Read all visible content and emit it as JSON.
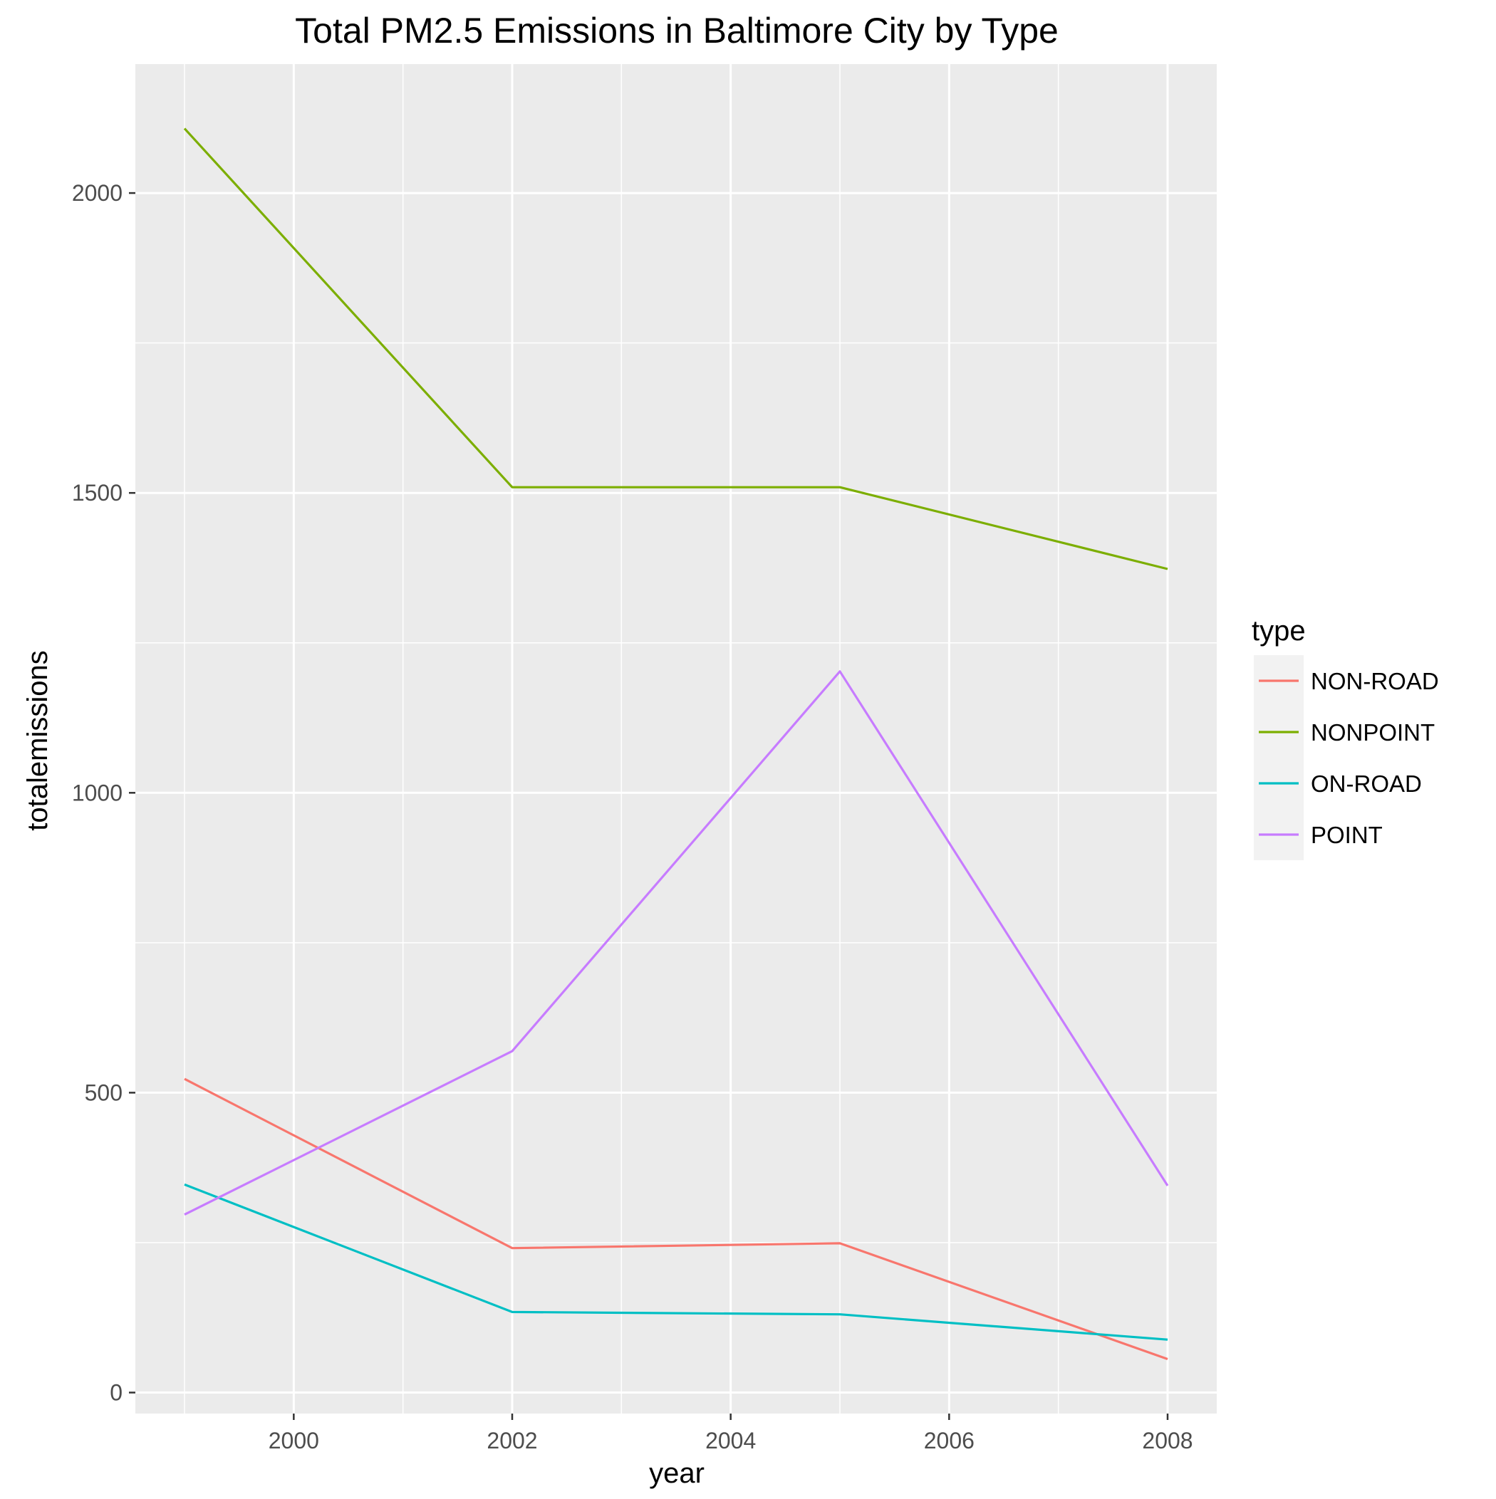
{
  "chart_data": {
    "type": "line",
    "title": "Total PM2.5 Emissions in Baltimore City by Type",
    "xlabel": "year",
    "ylabel": "totalemissions",
    "x": [
      1999,
      2002,
      2005,
      2008
    ],
    "xlim": [
      1998.55,
      2008.45
    ],
    "ylim": [
      -35,
      2215
    ],
    "x_ticks": [
      2000,
      2002,
      2004,
      2006,
      2008
    ],
    "x_tick_labels": [
      "2000",
      "2002",
      "2004",
      "2006",
      "2008"
    ],
    "y_ticks": [
      0,
      500,
      1000,
      1500,
      2000
    ],
    "y_tick_labels": [
      "0",
      "500",
      "1000",
      "1500",
      "2000"
    ],
    "grid": true,
    "background": "#ebebeb",
    "legend": {
      "title": "type",
      "position": "right"
    },
    "series": [
      {
        "name": "NON-ROAD",
        "color": "#F8766D",
        "values": [
          522.94,
          240.85,
          248.93,
          55.82
        ]
      },
      {
        "name": "NONPOINT",
        "color": "#7CAE00",
        "values": [
          2107.63,
          1509.5,
          1509.5,
          1373.21
        ]
      },
      {
        "name": "ON-ROAD",
        "color": "#00BFC4",
        "values": [
          346.82,
          134.31,
          130.43,
          88.28
        ]
      },
      {
        "name": "POINT",
        "color": "#C77CFF",
        "values": [
          296.8,
          569.26,
          1202.49,
          344.98
        ]
      }
    ]
  }
}
